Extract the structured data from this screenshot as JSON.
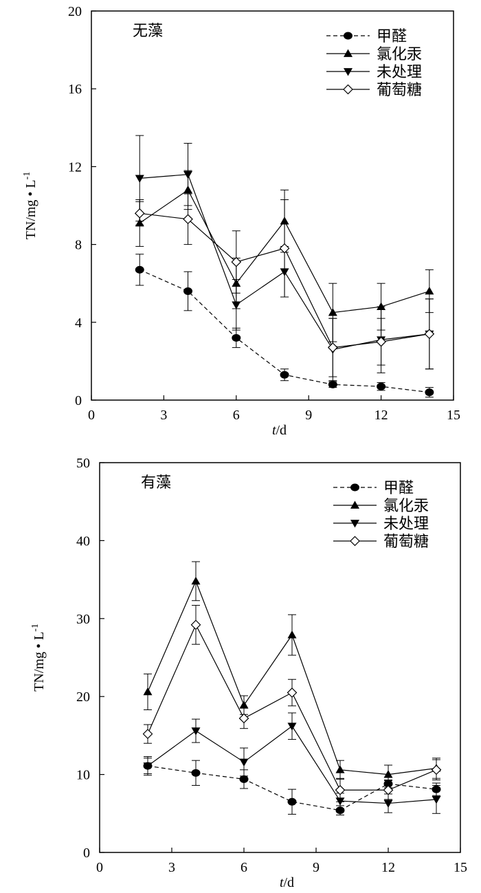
{
  "chart_data": [
    {
      "type": "line",
      "title": "无藻",
      "xlabel_italic": "t",
      "xlabel_unit": "/d",
      "ylabel": "TN/mg • L",
      "ylabel_sup": "-1",
      "xlim": [
        0,
        15
      ],
      "ylim": [
        0,
        20
      ],
      "xticks": [
        0,
        3,
        6,
        9,
        12,
        15
      ],
      "yticks": [
        0,
        4,
        8,
        12,
        16,
        20
      ],
      "legend_position": "top-right",
      "grid": false,
      "x": [
        2,
        4,
        6,
        8,
        10,
        12,
        14
      ],
      "series": [
        {
          "name": "甲醛",
          "marker": "circle",
          "dashed": true,
          "values": [
            6.7,
            5.6,
            3.2,
            1.3,
            0.8,
            0.7,
            0.4
          ],
          "errors": [
            0.8,
            1.0,
            0.5,
            0.3,
            0.15,
            0.2,
            0.25
          ]
        },
        {
          "name": "氯化汞",
          "marker": "triangle-up",
          "dashed": false,
          "values": [
            9.1,
            10.8,
            6.0,
            9.2,
            4.5,
            4.8,
            5.6
          ],
          "errors": [
            1.2,
            1.0,
            1.3,
            1.6,
            1.5,
            1.2,
            1.1
          ]
        },
        {
          "name": "未处理",
          "marker": "triangle-down",
          "dashed": false,
          "values": [
            11.4,
            11.6,
            4.9,
            6.6,
            2.6,
            3.1,
            3.4
          ],
          "errors": [
            2.2,
            1.6,
            1.3,
            1.3,
            1.6,
            1.7,
            1.8
          ]
        },
        {
          "name": "葡萄糖",
          "marker": "diamond-open",
          "dashed": false,
          "values": [
            9.6,
            9.3,
            7.1,
            7.8,
            2.7,
            3.0,
            3.4
          ],
          "errors": [
            0.6,
            1.3,
            1.6,
            2.5,
            1.5,
            1.2,
            1.8
          ]
        }
      ]
    },
    {
      "type": "line",
      "title": "有藻",
      "xlabel_italic": "t",
      "xlabel_unit": "/d",
      "ylabel": "TN/mg • L",
      "ylabel_sup": "-1",
      "xlim": [
        0,
        15
      ],
      "ylim": [
        0,
        50
      ],
      "xticks": [
        0,
        3,
        6,
        9,
        12,
        15
      ],
      "yticks": [
        0,
        10,
        20,
        30,
        40,
        50
      ],
      "legend_position": "top-right",
      "grid": false,
      "x": [
        2,
        4,
        6,
        8,
        10,
        12,
        14
      ],
      "series": [
        {
          "name": "甲醛",
          "marker": "circle",
          "dashed": true,
          "values": [
            11.1,
            10.2,
            9.4,
            6.5,
            5.4,
            8.8,
            8.1
          ],
          "errors": [
            1.0,
            1.6,
            1.2,
            1.6,
            0.6,
            0.5,
            0.8
          ]
        },
        {
          "name": "氯化汞",
          "marker": "triangle-up",
          "dashed": false,
          "values": [
            20.6,
            34.8,
            18.9,
            27.9,
            10.6,
            10.0,
            10.8
          ],
          "errors": [
            2.3,
            2.5,
            1.2,
            2.6,
            1.2,
            1.2,
            1.3
          ]
        },
        {
          "name": "未处理",
          "marker": "triangle-down",
          "dashed": false,
          "values": [
            11.1,
            15.6,
            11.6,
            16.2,
            6.6,
            6.3,
            6.8
          ],
          "errors": [
            1.2,
            1.5,
            1.8,
            1.7,
            1.0,
            1.2,
            1.8
          ]
        },
        {
          "name": "葡萄糖",
          "marker": "diamond-open",
          "dashed": false,
          "values": [
            15.2,
            29.2,
            17.2,
            20.5,
            8.0,
            8.0,
            10.6
          ],
          "errors": [
            1.2,
            2.5,
            1.3,
            1.7,
            1.5,
            1.2,
            1.3
          ]
        }
      ]
    }
  ]
}
